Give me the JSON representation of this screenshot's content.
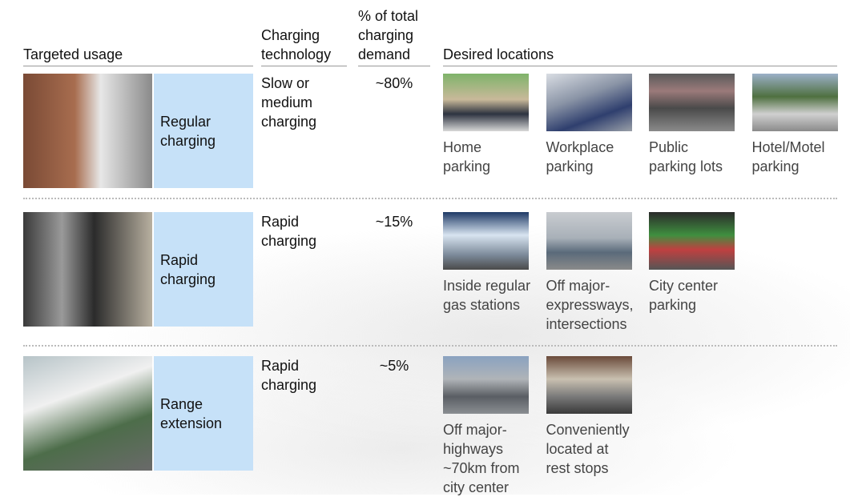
{
  "header": {
    "usage": "Targeted usage",
    "technology": "Charging\ntechnology",
    "share": "% of total\ncharging\ndemand",
    "locations": "Desired locations"
  },
  "rows": [
    {
      "usage": "Regular\ncharging",
      "technology": "Slow or\nmedium\ncharging",
      "share": "~80%",
      "locations": [
        "Home\nparking",
        "Workplace\nparking",
        "Public\nparking lots",
        "Hotel/Motel\nparking"
      ]
    },
    {
      "usage": "Rapid\ncharging",
      "technology": "Rapid\ncharging",
      "share": "~15%",
      "locations": [
        "Inside regular\ngas stations",
        "Off major-\nexpressways,\nintersections",
        "City center\nparking"
      ]
    },
    {
      "usage": "Range\nextension",
      "technology": "Rapid\ncharging",
      "share": "~5%",
      "locations": [
        "Off major-\nhighways\n~70km from\ncity center",
        "Conveniently\nlocated at\nrest stops"
      ]
    }
  ]
}
